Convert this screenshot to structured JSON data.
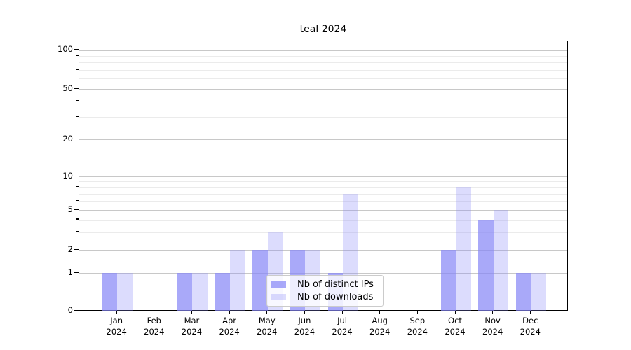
{
  "title": "teal 2024",
  "chart_data": {
    "type": "bar",
    "title": "teal 2024",
    "categories": [
      "Jan",
      "Feb",
      "Mar",
      "Apr",
      "May",
      "Jun",
      "Jul",
      "Aug",
      "Sep",
      "Oct",
      "Nov",
      "Dec"
    ],
    "category_year": "2024",
    "series": [
      {
        "name": "Nb of distinct IPs",
        "color": "#8585f7",
        "alpha": 0.7,
        "values": [
          1,
          0,
          1,
          1,
          2,
          2,
          1,
          0,
          0,
          2,
          4,
          1
        ]
      },
      {
        "name": "Nb of downloads",
        "color": "#8585f7",
        "alpha": 0.29,
        "values": [
          1,
          0,
          1,
          2,
          3,
          2,
          7,
          0,
          0,
          8,
          5,
          1
        ]
      }
    ],
    "y_axis": {
      "scale": "symlog",
      "ticks": [
        0,
        1,
        2,
        5,
        10,
        20,
        50,
        100
      ],
      "minor_ticks": [
        3,
        4,
        6,
        7,
        8,
        9,
        30,
        40,
        60,
        70,
        80,
        90
      ],
      "ylim": [
        0,
        115
      ]
    },
    "xlabel": "",
    "ylabel": "",
    "grid": true,
    "legend_position": "lower center",
    "colors": {
      "bar_strong_visible": "#aaaaf9",
      "bar_light_visible": "#dcdbfa",
      "grid_major": "#c8c8c8",
      "grid_minor": "#ebebeb",
      "axis": "#000000"
    }
  }
}
